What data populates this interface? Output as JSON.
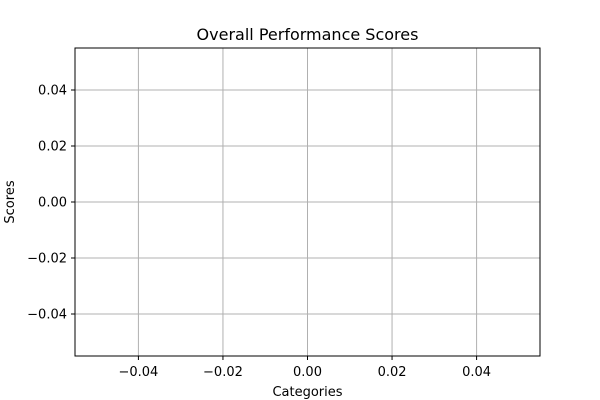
{
  "chart_data": {
    "type": "bar",
    "title": "Overall Performance Scores",
    "xlabel": "Categories",
    "ylabel": "Scores",
    "categories": [],
    "values": [],
    "xlim": [
      -0.055,
      0.055
    ],
    "ylim": [
      -0.055,
      0.055
    ],
    "xticks": [
      -0.04,
      -0.02,
      0.0,
      0.02,
      0.04
    ],
    "yticks": [
      -0.04,
      -0.02,
      0.0,
      0.02,
      0.04
    ],
    "xtick_labels": [
      "−0.04",
      "−0.02",
      "0.00",
      "0.02",
      "0.04"
    ],
    "ytick_labels": [
      "−0.04",
      "−0.02",
      "0.00",
      "0.02",
      "0.04"
    ],
    "grid": true,
    "colors": {
      "grid": "#b0b0b0",
      "frame": "#000000",
      "text": "#000000"
    }
  }
}
